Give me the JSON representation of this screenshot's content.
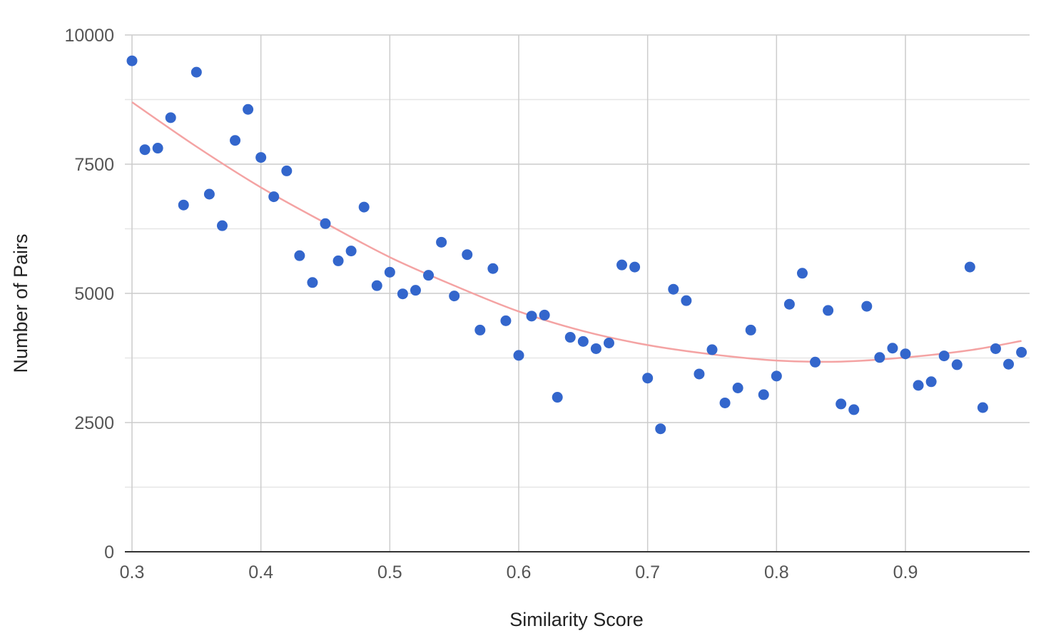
{
  "chart_data": {
    "type": "scatter",
    "title": "",
    "xlabel": "Similarity Score",
    "ylabel": "Number of Pairs",
    "xlim": [
      0.3,
      0.99
    ],
    "ylim": [
      0,
      10000
    ],
    "x_ticks": [
      "0.3",
      "0.4",
      "0.5",
      "0.6",
      "0.7",
      "0.8",
      "0.9"
    ],
    "y_ticks": [
      "0",
      "2500",
      "5000",
      "7500",
      "10000"
    ],
    "grid": true,
    "legend": "none",
    "colors": {
      "points": "#3366cc",
      "trendline": "#f4a3a3"
    },
    "series": [
      {
        "x": [
          0.3,
          0.31,
          0.32,
          0.33,
          0.34,
          0.35,
          0.36,
          0.37,
          0.38,
          0.39,
          0.4,
          0.41,
          0.42,
          0.43,
          0.44,
          0.45,
          0.46,
          0.47,
          0.48,
          0.49,
          0.5,
          0.51,
          0.52,
          0.53,
          0.54,
          0.55,
          0.56,
          0.57,
          0.58,
          0.59,
          0.6,
          0.61,
          0.62,
          0.63,
          0.64,
          0.65,
          0.66,
          0.67,
          0.68,
          0.69,
          0.7,
          0.71,
          0.72,
          0.73,
          0.74,
          0.75,
          0.76,
          0.77,
          0.78,
          0.79,
          0.8,
          0.81,
          0.82,
          0.83,
          0.84,
          0.85,
          0.86,
          0.87,
          0.88,
          0.89,
          0.9,
          0.91,
          0.92,
          0.93,
          0.94,
          0.95,
          0.96,
          0.97,
          0.98,
          0.99
        ],
        "y": [
          9500,
          7780,
          7810,
          8400,
          6710,
          9280,
          6920,
          6310,
          7960,
          8560,
          7630,
          6870,
          7370,
          5730,
          5210,
          6350,
          5630,
          5820,
          6670,
          5150,
          5410,
          4990,
          5060,
          5350,
          5990,
          4950,
          5750,
          4290,
          5480,
          4470,
          3800,
          4560,
          4580,
          2990,
          4150,
          4070,
          3930,
          4040,
          5550,
          5510,
          3360,
          2380,
          5080,
          4860,
          3440,
          3910,
          2880,
          3170,
          4290,
          3040,
          3400,
          4790,
          5390,
          3670,
          4670,
          2860,
          2750,
          4750,
          3760,
          3940,
          3830,
          3220,
          3290,
          3790,
          3620,
          5510,
          2790,
          3930,
          3630,
          3860
        ]
      }
    ],
    "trendline": {
      "type": "polynomial",
      "x": [
        0.3,
        0.35,
        0.4,
        0.45,
        0.5,
        0.55,
        0.6,
        0.65,
        0.7,
        0.75,
        0.8,
        0.85,
        0.9,
        0.95,
        0.99
      ],
      "y": [
        8700,
        7840,
        7050,
        6360,
        5700,
        5150,
        4650,
        4270,
        4000,
        3820,
        3700,
        3680,
        3760,
        3900,
        4080
      ]
    }
  }
}
